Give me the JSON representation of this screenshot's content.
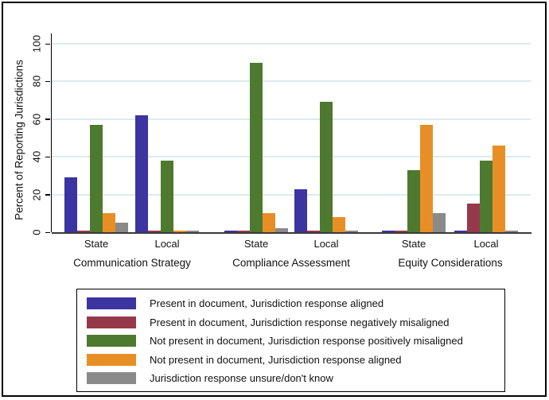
{
  "chart_data": {
    "type": "bar",
    "title": "",
    "ylabel": "Percent of Reporting Jurisdictions",
    "xlabel": "",
    "ylim": [
      0,
      100
    ],
    "yticks": [
      0,
      20,
      40,
      60,
      80,
      100
    ],
    "grid": "horizontal gridlines on",
    "legend_position": "bottom boxed",
    "categories": [
      "Communication Strategy",
      "Compliance Assessment",
      "Equity Considerations"
    ],
    "groups": [
      {
        "category": "Communication Strategy",
        "label": "State"
      },
      {
        "category": "Communication Strategy",
        "label": "Local"
      },
      {
        "category": "Compliance Assessment",
        "label": "State"
      },
      {
        "category": "Compliance Assessment",
        "label": "Local"
      },
      {
        "category": "Equity Considerations",
        "label": "State"
      },
      {
        "category": "Equity Considerations",
        "label": "Local"
      }
    ],
    "series": [
      {
        "name": "Present in document, Jurisdiction response aligned",
        "color": "#3b34a1",
        "values": [
          29,
          62,
          1,
          23,
          1,
          1
        ]
      },
      {
        "name": "Present in document, Jurisdiction response negatively misaligned",
        "color": "#963a4b",
        "values": [
          1,
          1,
          1,
          1,
          1,
          15
        ]
      },
      {
        "name": "Not present in document, Jurisdiction response positively misaligned",
        "color": "#4d7a2f",
        "values": [
          57,
          38,
          90,
          69,
          33,
          38
        ]
      },
      {
        "name": "Not present in document, Jurisdiction response aligned",
        "color": "#e78f26",
        "values": [
          10,
          1,
          10,
          8,
          57,
          46
        ]
      },
      {
        "name": "Jurisdiction response unsure/don't know",
        "color": "#8a8a8a",
        "values": [
          5,
          1,
          2,
          1,
          10,
          1
        ]
      }
    ],
    "colors": {
      "gridline": "#dcebee",
      "axis": "#000000",
      "x_axis_line": "#3a3a3a",
      "background": "#ffffff",
      "frame_border": "#000000"
    }
  }
}
